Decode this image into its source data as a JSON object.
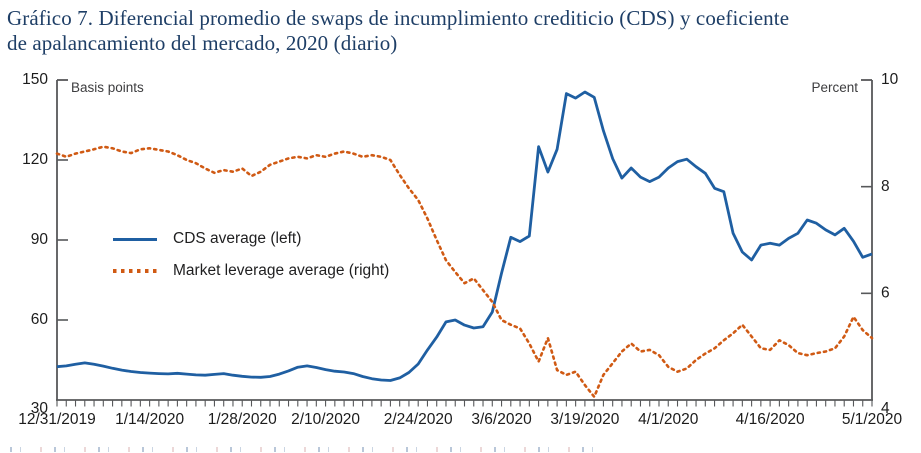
{
  "header": {
    "line1": "Gráfico 7. Diferencial promedio de swaps de incumplimiento crediticio (CDS) y coeficiente",
    "line2": "de apalancamiento del mercado, 2020 (diario)"
  },
  "axes": {
    "left_unit": "Basis points",
    "right_unit": "Percent"
  },
  "legend": [
    {
      "label": "CDS average (left)"
    },
    {
      "label": "Market leverage average (right)"
    }
  ],
  "colors": {
    "cds_blue": "#1f5fa2",
    "leverage_orange": "#d05a14",
    "axis_gray": "#57585a",
    "tick_text": "#1c1c1c",
    "title_navy": "#1e3e66"
  },
  "chart_data": {
    "type": "line",
    "title": "Gráfico 7. Diferencial promedio de swaps de incumplimiento crediticio (CDS) y coeficiente de apalancamiento del mercado, 2020 (diario)",
    "n_points": 89,
    "x_tick_labels": [
      "12/31/2019",
      "1/14/2020",
      "1/28/2020",
      "2/10/2020",
      "2/24/2020",
      "3/6/2020",
      "3/19/2020",
      "4/1/2020",
      "4/16/2020",
      "5/1/2020"
    ],
    "x_tick_indices": [
      0,
      10,
      20,
      29,
      39,
      48,
      57,
      66,
      77,
      88
    ],
    "ylim_left": [
      30,
      150
    ],
    "yticks_left": [
      30,
      60,
      90,
      120,
      150
    ],
    "ylabel_left": "Basis points",
    "ylim_right": [
      4,
      10
    ],
    "yticks_right": [
      4,
      6,
      8,
      10
    ],
    "ylabel_right": "Percent",
    "grid": false,
    "legend_position": "inside-left",
    "series": [
      {
        "name": "CDS average (left)",
        "axis": "left",
        "style": "solid",
        "color": "#1f5fa2",
        "values": [
          42.5,
          42.8,
          43.4,
          43.9,
          43.4,
          42.7,
          41.9,
          41.2,
          40.7,
          40.3,
          40.1,
          39.9,
          39.8,
          40.0,
          39.7,
          39.4,
          39.3,
          39.6,
          39.9,
          39.3,
          38.9,
          38.6,
          38.5,
          38.8,
          39.7,
          40.9,
          42.3,
          42.8,
          42.2,
          41.4,
          40.8,
          40.5,
          39.9,
          38.8,
          38.0,
          37.5,
          37.3,
          38.3,
          40.3,
          43.5,
          48.8,
          53.6,
          59.3,
          60.0,
          58.1,
          57.0,
          57.5,
          63.0,
          77.5,
          91.0,
          89.4,
          91.5,
          125.0,
          115.5,
          124.0,
          144.9,
          143.2,
          145.5,
          143.5,
          131.0,
          120.5,
          113.2,
          117.0,
          113.6,
          111.9,
          113.6,
          117.0,
          119.4,
          120.3,
          117.5,
          115.0,
          109.4,
          108.1,
          92.5,
          85.5,
          82.5,
          88.1,
          88.8,
          88.1,
          90.6,
          92.5,
          97.5,
          96.3,
          93.8,
          91.9,
          94.4,
          89.5,
          83.5,
          84.8
        ]
      },
      {
        "name": "Market leverage average (right)",
        "axis": "right",
        "style": "dotted",
        "color": "#d05a14",
        "values": [
          8.62,
          8.56,
          8.62,
          8.66,
          8.7,
          8.75,
          8.72,
          8.66,
          8.63,
          8.7,
          8.72,
          8.69,
          8.66,
          8.59,
          8.5,
          8.44,
          8.34,
          8.26,
          8.31,
          8.28,
          8.34,
          8.2,
          8.28,
          8.41,
          8.47,
          8.53,
          8.56,
          8.53,
          8.59,
          8.56,
          8.62,
          8.66,
          8.62,
          8.56,
          8.59,
          8.56,
          8.5,
          8.22,
          7.97,
          7.75,
          7.4,
          7.0,
          6.62,
          6.4,
          6.19,
          6.28,
          6.06,
          5.84,
          5.5,
          5.41,
          5.34,
          5.06,
          4.72,
          5.16,
          4.56,
          4.47,
          4.53,
          4.28,
          4.06,
          4.47,
          4.69,
          4.91,
          5.06,
          4.91,
          4.94,
          4.84,
          4.62,
          4.53,
          4.59,
          4.75,
          4.87,
          4.97,
          5.12,
          5.25,
          5.41,
          5.19,
          4.97,
          4.94,
          5.12,
          5.03,
          4.88,
          4.84,
          4.88,
          4.91,
          4.97,
          5.19,
          5.56,
          5.31,
          5.16
        ]
      }
    ]
  }
}
